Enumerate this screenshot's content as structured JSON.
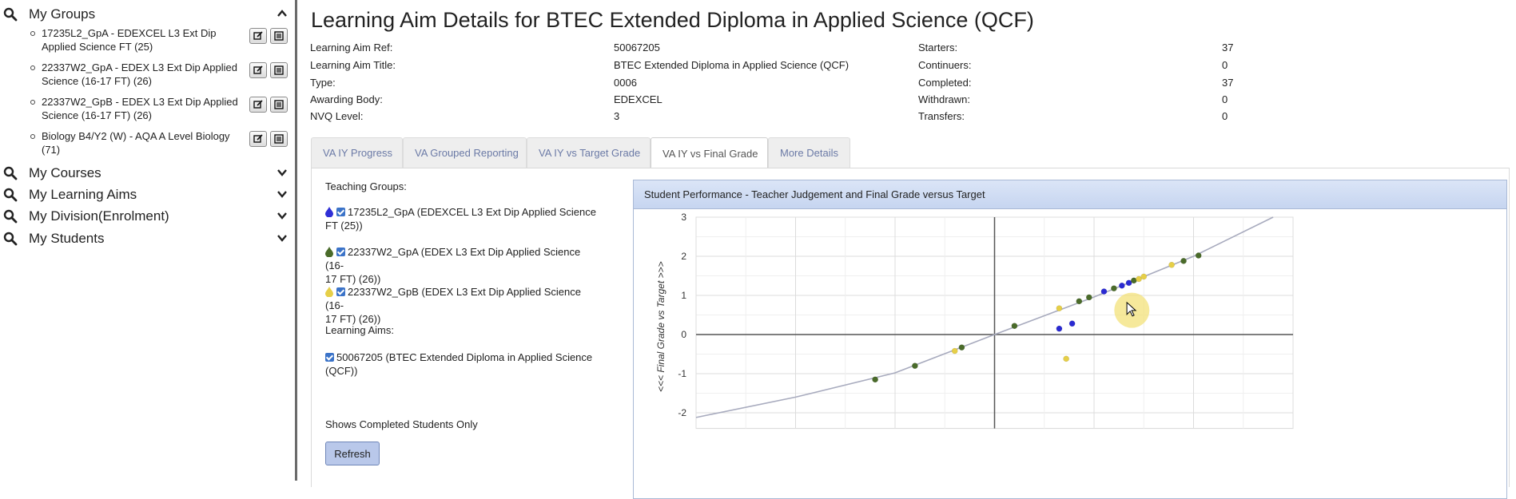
{
  "sidebar": {
    "sections": [
      {
        "title": "My Groups",
        "expanded": true
      },
      {
        "title": "My Courses",
        "expanded": false
      },
      {
        "title": "My Learning Aims",
        "expanded": false
      },
      {
        "title": "My Division(Enrolment)",
        "expanded": false
      },
      {
        "title": "My Students",
        "expanded": false
      }
    ],
    "groups": [
      {
        "line1": "17235L2_GpA - EDEXCEL L3 Ext Dip",
        "line2": "Applied Science FT (25)"
      },
      {
        "line1": "22337W2_GpA - EDEX L3 Ext Dip Applied",
        "line2": "Science (16-17 FT) (26)"
      },
      {
        "line1": "22337W2_GpB - EDEX L3 Ext Dip Applied",
        "line2": "Science (16-17 FT) (26)"
      },
      {
        "line1": "Biology B4/Y2 (W) - AQA A Level Biology",
        "line2": "(71)"
      }
    ],
    "icons": {
      "section": "search-icon",
      "edit": "edit-icon",
      "report": "report-icon"
    }
  },
  "main": {
    "title": "Learning Aim Details for BTEC Extended Diploma in Applied Science (QCF)",
    "details_left": [
      {
        "label": "Learning Aim Ref:",
        "value": "50067205"
      },
      {
        "label": "Learning Aim Title:",
        "value": "BTEC Extended Diploma in Applied Science (QCF)"
      },
      {
        "label": "Type:",
        "value": "0006"
      },
      {
        "label": "Awarding Body:",
        "value": "EDEXCEL"
      },
      {
        "label": "NVQ Level:",
        "value": "3"
      }
    ],
    "details_right": [
      {
        "label": "Starters:",
        "value": "37"
      },
      {
        "label": "Continuers:",
        "value": "0"
      },
      {
        "label": "Completed:",
        "value": "37"
      },
      {
        "label": "Withdrawn:",
        "value": "0"
      },
      {
        "label": "Transfers:",
        "value": "0"
      }
    ],
    "tabs": [
      {
        "label": "VA IY Progress",
        "active": false
      },
      {
        "label": "VA Grouped Reporting",
        "active": false
      },
      {
        "label": "VA IY vs Target Grade",
        "active": false
      },
      {
        "label": "VA IY vs Final Grade",
        "active": true
      },
      {
        "label": "More Details",
        "active": false
      }
    ],
    "panel": {
      "teaching_groups_label": "Teaching Groups:",
      "teaching_groups": [
        {
          "line1": "17235L2_GpA (EDEXCEL L3 Ext Dip Applied Science",
          "line2": "FT (25))",
          "color": "#2f2fd6",
          "checked": true
        },
        {
          "line1": "22337W2_GpA (EDEX L3 Ext Dip Applied Science (16-",
          "line2": "17 FT) (26))",
          "color": "#4a6b2a",
          "checked": true
        },
        {
          "line1": "22337W2_GpB (EDEX L3 Ext Dip Applied Science (16-",
          "line2": "17 FT) (26))",
          "color": "#e6cf48",
          "checked": true
        }
      ],
      "learning_aims_label": "Learning Aims:",
      "learning_aims": [
        {
          "line1": "50067205 (BTEC Extended Diploma in Applied Science",
          "line2": "(QCF))",
          "checked": true
        }
      ],
      "completed_note": "Shows Completed Students Only",
      "refresh_label": "Refresh"
    }
  },
  "chart_data": {
    "type": "scatter",
    "title": "Student Performance - Teacher Judgement and Final Grade versus Target",
    "ylabel": "<<< Final Grade vs Target >>>",
    "xlabel": "",
    "xlim": [
      -3,
      3
    ],
    "ylim": [
      -2.4,
      3
    ],
    "yticks": [
      3,
      2,
      1,
      0,
      -1,
      -2
    ],
    "grid": true,
    "curve": {
      "color": "#a8abbe",
      "points": [
        [
          -3,
          -2.12
        ],
        [
          -2,
          -1.6
        ],
        [
          -1,
          -0.98
        ],
        [
          0,
          0
        ],
        [
          1,
          0.96
        ],
        [
          2,
          2.0
        ],
        [
          2.8,
          3.0
        ]
      ]
    },
    "series": [
      {
        "color": "#2a2ad2",
        "points": [
          [
            0.65,
            0.15
          ],
          [
            0.78,
            0.28
          ],
          [
            1.1,
            1.1
          ],
          [
            1.28,
            1.25
          ],
          [
            1.35,
            1.32
          ]
        ]
      },
      {
        "color": "#4a6b2a",
        "points": [
          [
            -1.2,
            -1.15
          ],
          [
            -0.8,
            -0.8
          ],
          [
            -0.33,
            -0.33
          ],
          [
            0.2,
            0.22
          ],
          [
            0.85,
            0.85
          ],
          [
            0.95,
            0.95
          ],
          [
            1.2,
            1.18
          ],
          [
            1.4,
            1.38
          ],
          [
            1.9,
            1.88
          ],
          [
            2.05,
            2.02
          ]
        ]
      },
      {
        "color": "#e6cf48",
        "points": [
          [
            -0.4,
            -0.42
          ],
          [
            0.65,
            0.67
          ],
          [
            0.72,
            -0.62
          ],
          [
            1.45,
            1.42
          ],
          [
            1.5,
            1.48
          ],
          [
            1.78,
            1.78
          ]
        ]
      }
    ]
  }
}
